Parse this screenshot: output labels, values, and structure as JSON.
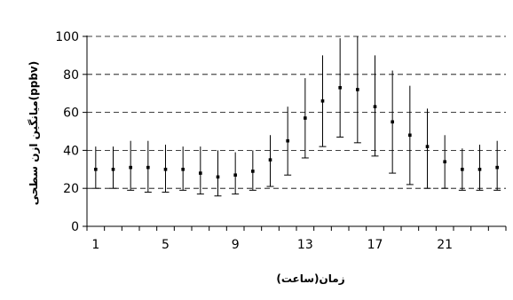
{
  "chart_data": {
    "type": "scatter",
    "xlabel": "زمان(ساعت)",
    "ylabel": "میانگین ازن سطحی(ppbv)",
    "xlim": [
      0.5,
      24.5
    ],
    "ylim": [
      0,
      100
    ],
    "y_ticks": [
      0,
      20,
      40,
      60,
      80,
      100
    ],
    "x_tick_labels": [
      "1",
      "5",
      "9",
      "13",
      "17",
      "21"
    ],
    "x_tick_values": [
      1,
      5,
      9,
      13,
      17,
      21
    ],
    "grid": "horizontal-dashed",
    "x": [
      1,
      2,
      3,
      4,
      5,
      6,
      7,
      8,
      9,
      10,
      11,
      12,
      13,
      14,
      15,
      16,
      17,
      18,
      19,
      20,
      21,
      22,
      23,
      24
    ],
    "mean": [
      30,
      30,
      31,
      31,
      30,
      30,
      28,
      26,
      27,
      29,
      35,
      45,
      57,
      66,
      73,
      72,
      63,
      55,
      48,
      42,
      34,
      30,
      30,
      31
    ],
    "upper": [
      42,
      42,
      45,
      45,
      43,
      42,
      42,
      40,
      39,
      40,
      48,
      63,
      78,
      90,
      99,
      100,
      90,
      82,
      74,
      62,
      48,
      41,
      43,
      45
    ],
    "lower": [
      20,
      20,
      19,
      18,
      18,
      19,
      17,
      16,
      17,
      19,
      21,
      27,
      36,
      42,
      47,
      44,
      37,
      28,
      22,
      20,
      20,
      19,
      19,
      19
    ]
  }
}
